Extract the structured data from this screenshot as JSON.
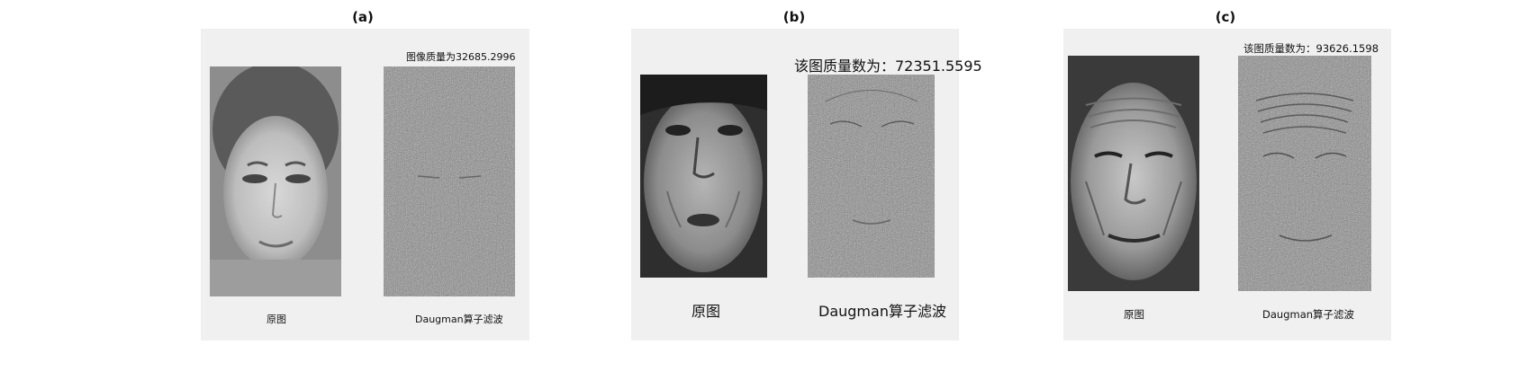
{
  "panels": [
    {
      "title": "(a)",
      "quality_text": "图像质量为32685.2996",
      "left_caption": "原图",
      "right_caption": "Daugman算子滤波"
    },
    {
      "title": "(b)",
      "quality_text": "该图质量数为：72351.5595",
      "left_caption": "原图",
      "right_caption": "Daugman算子滤波"
    },
    {
      "title": "(c)",
      "quality_text": "该图质量数为：93626.1598",
      "left_caption": "原图",
      "right_caption": "Daugman算子滤波"
    }
  ]
}
